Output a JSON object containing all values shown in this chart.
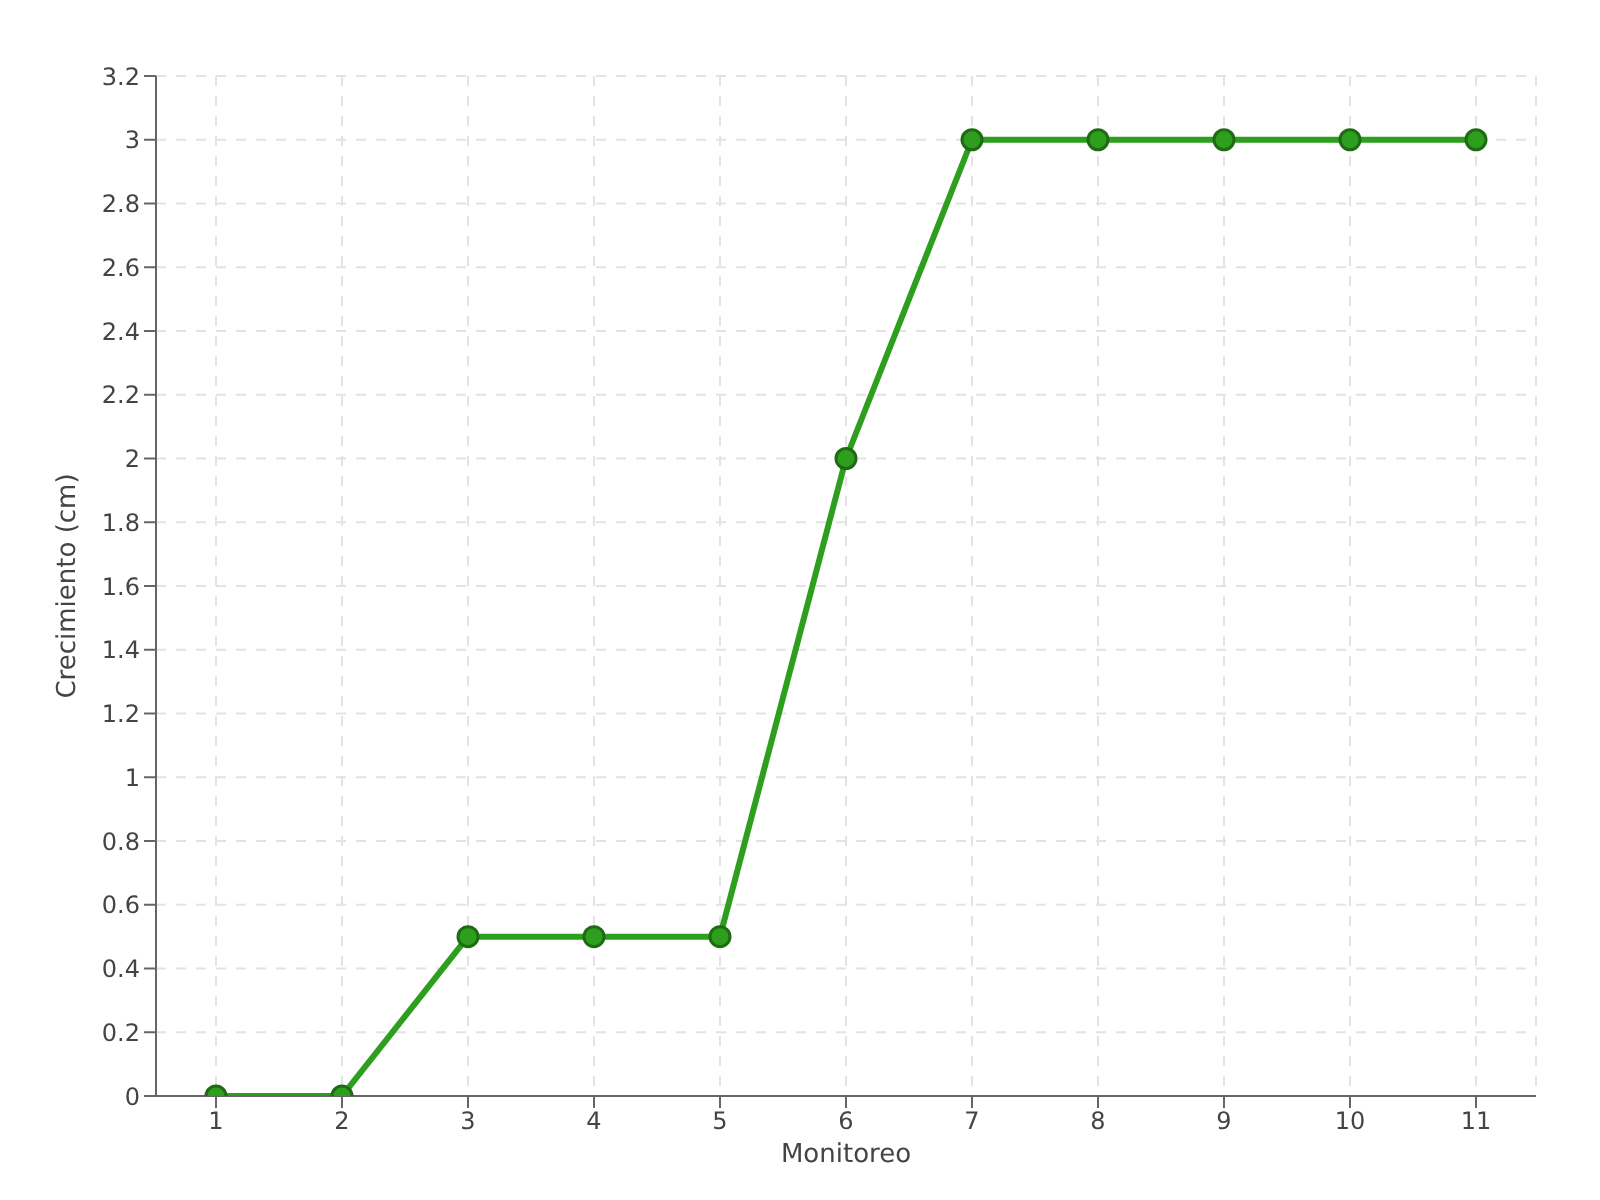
{
  "chart_data": {
    "type": "line",
    "xlabel": "Monitoreo",
    "ylabel": "Crecimiento (cm)",
    "categories": [
      "1",
      "2",
      "3",
      "4",
      "5",
      "6",
      "7",
      "8",
      "9",
      "10",
      "11"
    ],
    "series": [
      {
        "color": "#2e9e1e",
        "values": [
          0,
          0,
          0.5,
          0.5,
          0.5,
          2,
          3,
          3,
          3,
          3,
          3
        ]
      }
    ],
    "ylim": [
      0,
      3.2
    ],
    "yticks": [
      0,
      0.2,
      0.4,
      0.6,
      0.8,
      1,
      1.2,
      1.4,
      1.6,
      1.8,
      2,
      2.2,
      2.4,
      2.6,
      2.8,
      3,
      3.2
    ],
    "grid": true,
    "marker": "circle",
    "line_style": "solid"
  }
}
